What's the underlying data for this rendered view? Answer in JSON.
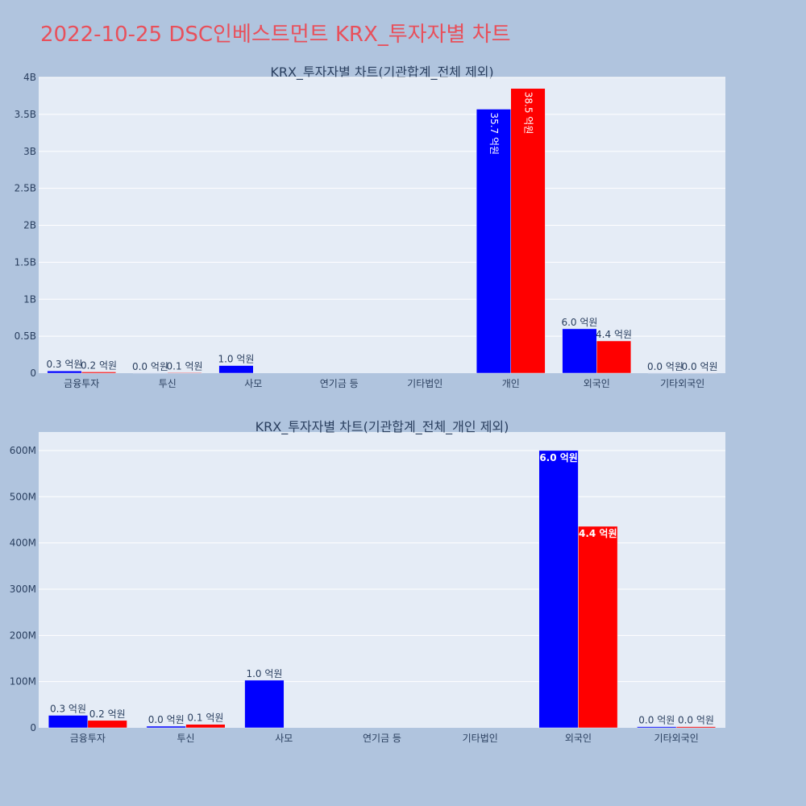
{
  "page": {
    "title": "2022-10-25 DSC인베스트먼트 KRX_투자자별 차트",
    "title_color": "#e8505b",
    "background": "#b0c4de"
  },
  "colors": {
    "plot_bg": "#e5ecf6",
    "grid": "#ffffff",
    "text": "#2a3f5f",
    "series_1": "#0000ff",
    "series_2": "#ff0000"
  },
  "chart_data": [
    {
      "type": "bar",
      "title": "KRX_투자자별 차트(기관합계_전체 제외)",
      "categories": [
        "금융투자",
        "투신",
        "사모",
        "연기금 등",
        "기타법인",
        "개인",
        "외국인",
        "기타외국인"
      ],
      "series": [
        {
          "color": "#0000ff",
          "values": [
            30000000,
            2000000,
            103000000,
            0,
            0,
            3570000000,
            600000000,
            2000000
          ],
          "labels": [
            "0.3 억원",
            "0.0 억원",
            "1.0 억원",
            "",
            "",
            "35.7 억원",
            "6.0 억원",
            "0.0 억원"
          ]
        },
        {
          "color": "#ff0000",
          "values": [
            17000000,
            8000000,
            0,
            0,
            0,
            3850000000,
            436000000,
            2000000
          ],
          "labels": [
            "0.2 억원",
            "0.1 억원",
            "",
            "",
            "",
            "38.5 억원",
            "4.4 억원",
            "0.0 억원"
          ]
        }
      ],
      "ylim": [
        0,
        4000000000
      ],
      "yticks": [
        0,
        500000000,
        1000000000,
        1500000000,
        2000000000,
        2500000000,
        3000000000,
        3500000000,
        4000000000
      ],
      "ytick_labels": [
        "0",
        "0.5B",
        "1B",
        "1.5B",
        "2B",
        "2.5B",
        "3B",
        "3.5B",
        "4B"
      ],
      "xlabel": "",
      "ylabel": "",
      "grid": true,
      "legend": "none"
    },
    {
      "type": "bar",
      "title": "KRX_투자자별 차트(기관합계_전체_개인 제외)",
      "categories": [
        "금융투자",
        "투신",
        "사모",
        "연기금 등",
        "기타법인",
        "외국인",
        "기타외국인"
      ],
      "series": [
        {
          "color": "#0000ff",
          "values": [
            27000000,
            3500000,
            103000000,
            0,
            0,
            600000000,
            2500000
          ],
          "labels": [
            "0.3 억원",
            "0.0 억원",
            "1.0 억원",
            "",
            "",
            "6.0 억원",
            "0.0 억원"
          ]
        },
        {
          "color": "#ff0000",
          "values": [
            16000000,
            7500000,
            0,
            0,
            0,
            436000000,
            2500000
          ],
          "labels": [
            "0.2 억원",
            "0.1 억원",
            "",
            "",
            "",
            "4.4 억원",
            "0.0 억원"
          ]
        }
      ],
      "ylim": [
        0,
        640000000
      ],
      "yticks": [
        0,
        100000000,
        200000000,
        300000000,
        400000000,
        500000000,
        600000000
      ],
      "ytick_labels": [
        "0",
        "100M",
        "200M",
        "300M",
        "400M",
        "500M",
        "600M"
      ],
      "xlabel": "",
      "ylabel": "",
      "grid": true,
      "legend": "none"
    }
  ]
}
